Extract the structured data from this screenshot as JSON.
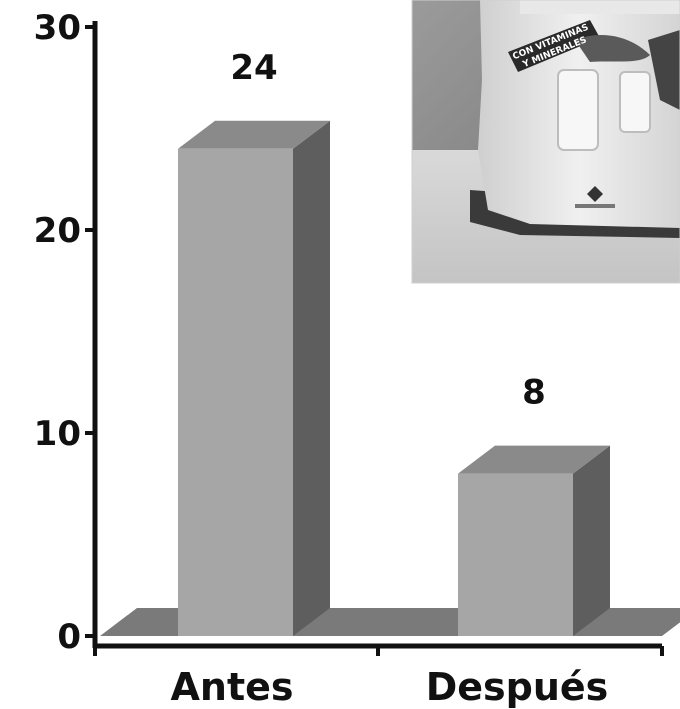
{
  "chart_data": {
    "type": "bar",
    "categories": [
      "Antes",
      "Después"
    ],
    "values": [
      24,
      8
    ],
    "data_labels": [
      "24",
      "8"
    ],
    "ylim": [
      0,
      30
    ],
    "yticks": [
      0,
      10,
      20,
      30
    ],
    "ytick_labels": [
      "0",
      "10",
      "20",
      "30"
    ],
    "grid": false,
    "legend": "none",
    "style": "3d",
    "colors": {
      "bar_front": "#a6a6a6",
      "bar_top": "#8a8a8a",
      "bar_side": "#5e5e5e",
      "floor": "#7a7a7a",
      "axis": "#111111"
    }
  },
  "photo": {
    "description_icon": "milk-bag-photo-icon",
    "bag_text_lines": [
      "CON VITAMINAS",
      "Y MINERALES"
    ]
  }
}
